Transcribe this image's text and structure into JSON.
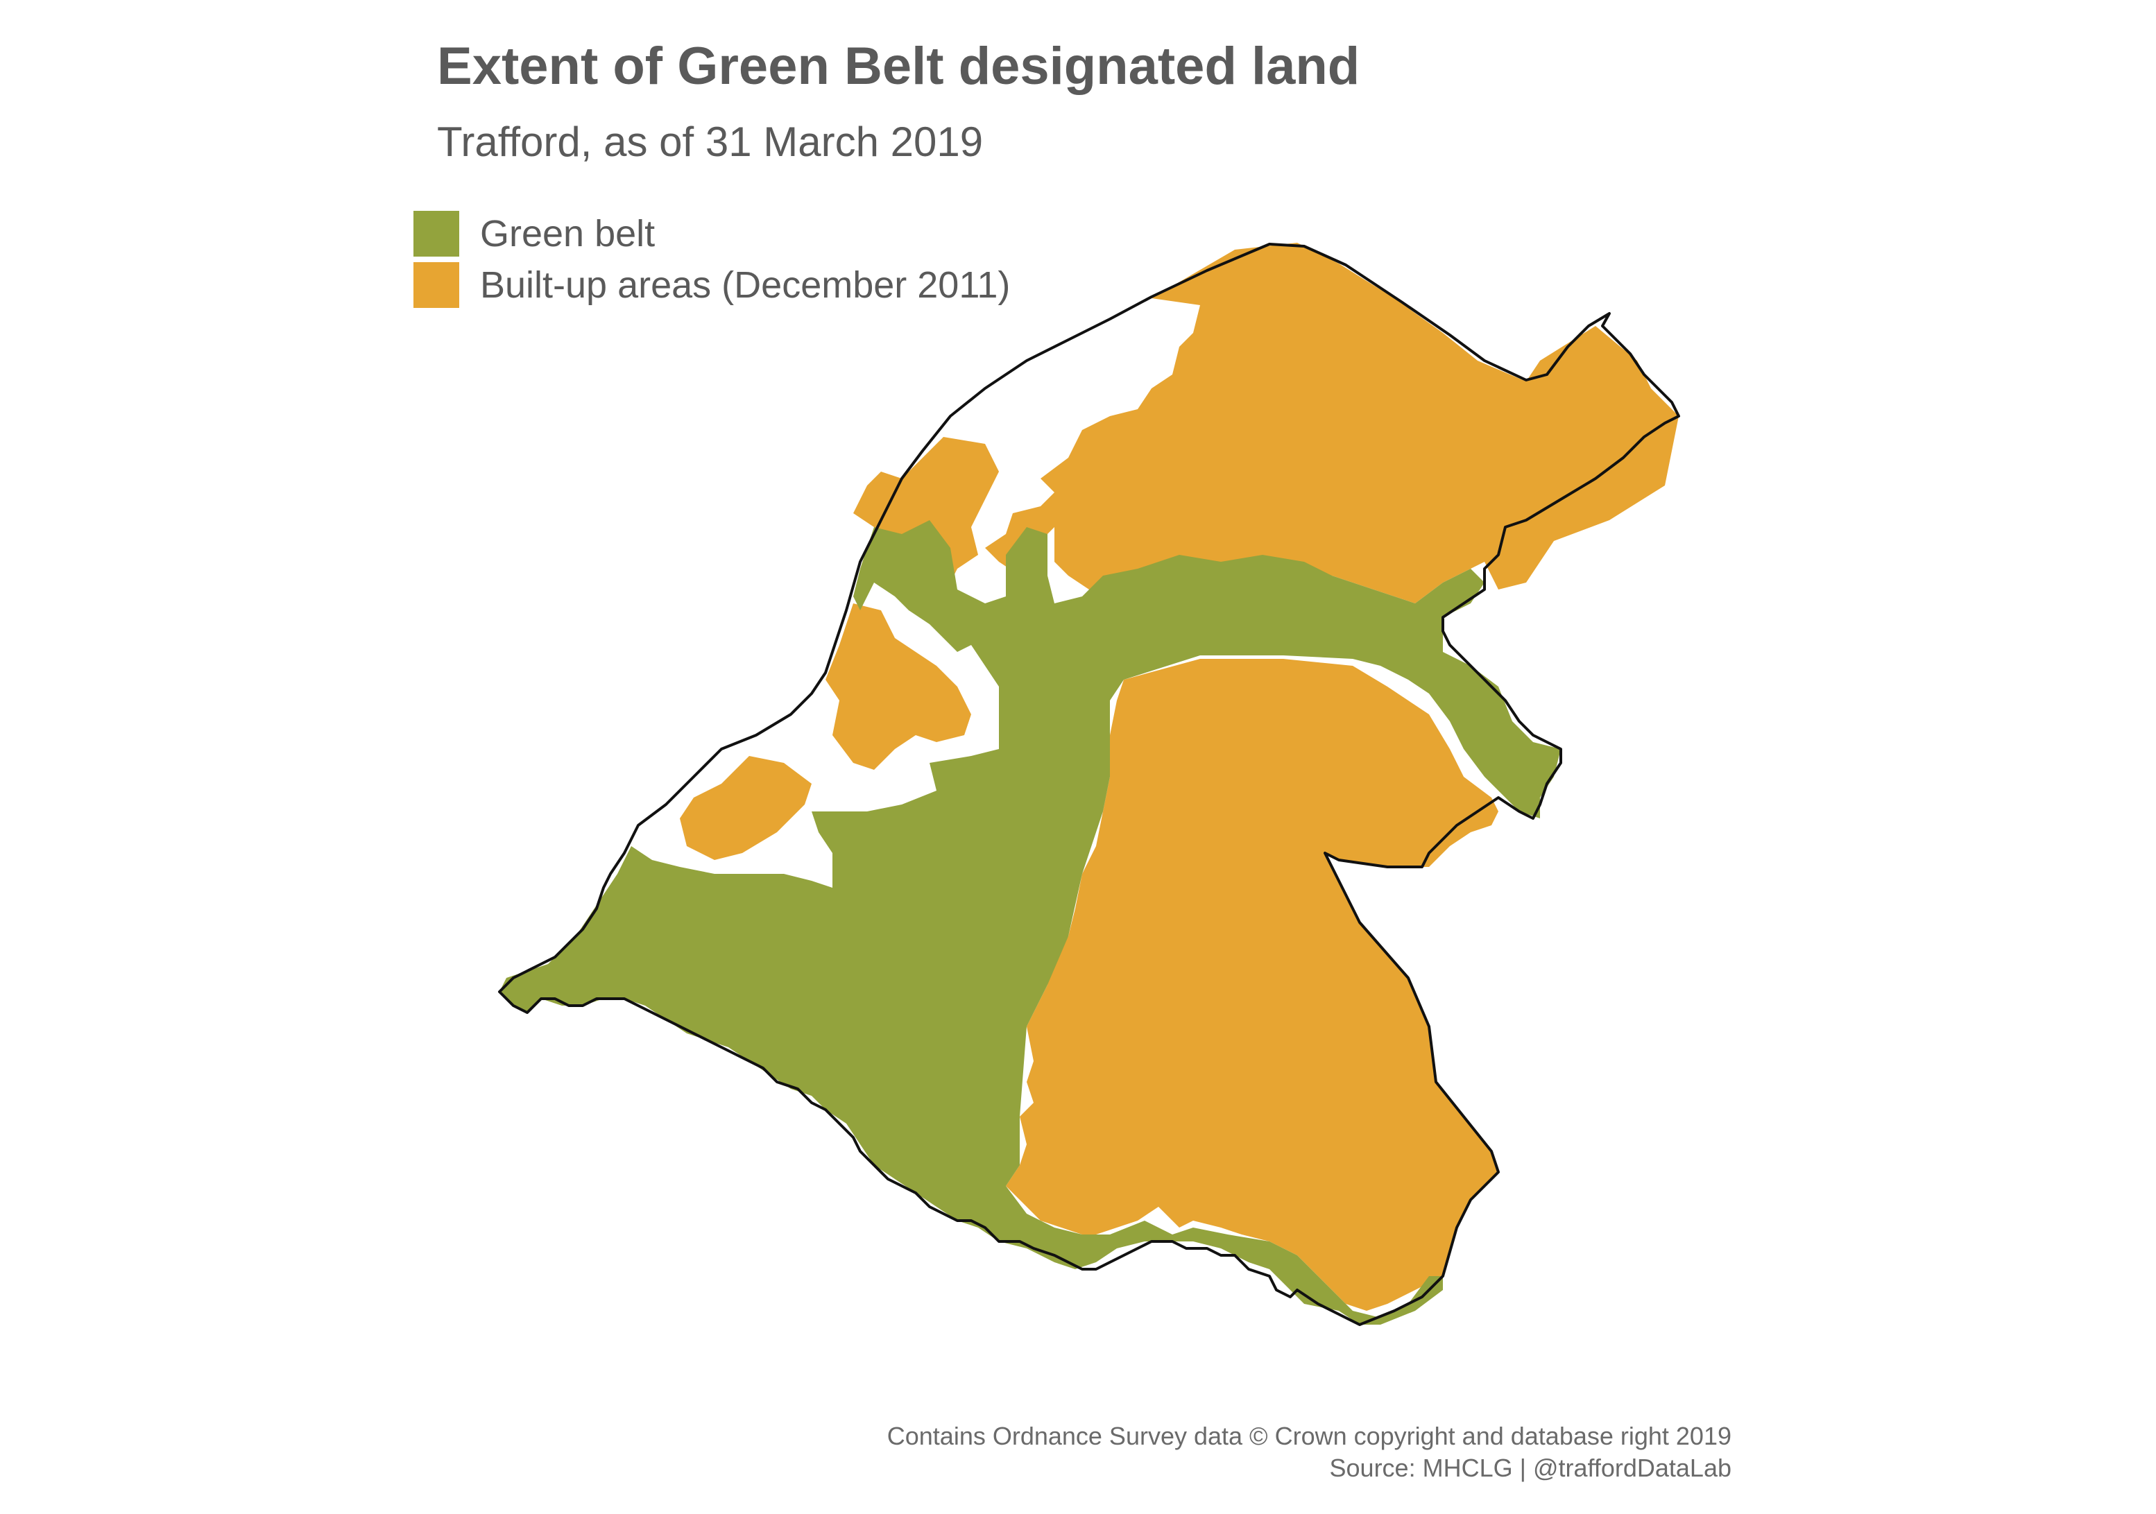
{
  "title": "Extent of Green Belt designated land",
  "subtitle": "Trafford, as of 31 March 2019",
  "legend": [
    {
      "label": "Green belt",
      "color": "#93a33d"
    },
    {
      "label": "Built-up areas (December 2011)",
      "color": "#e7a532"
    }
  ],
  "caption": {
    "line1": "Contains Ordnance Survey data © Crown copyright and database right 2019",
    "line2": "Source: MHCLG | @traffordDataLab"
  },
  "colors": {
    "green_belt": "#93a33d",
    "built_up": "#e7a532",
    "boundary": "#111111",
    "text": "#5a5a5a"
  }
}
